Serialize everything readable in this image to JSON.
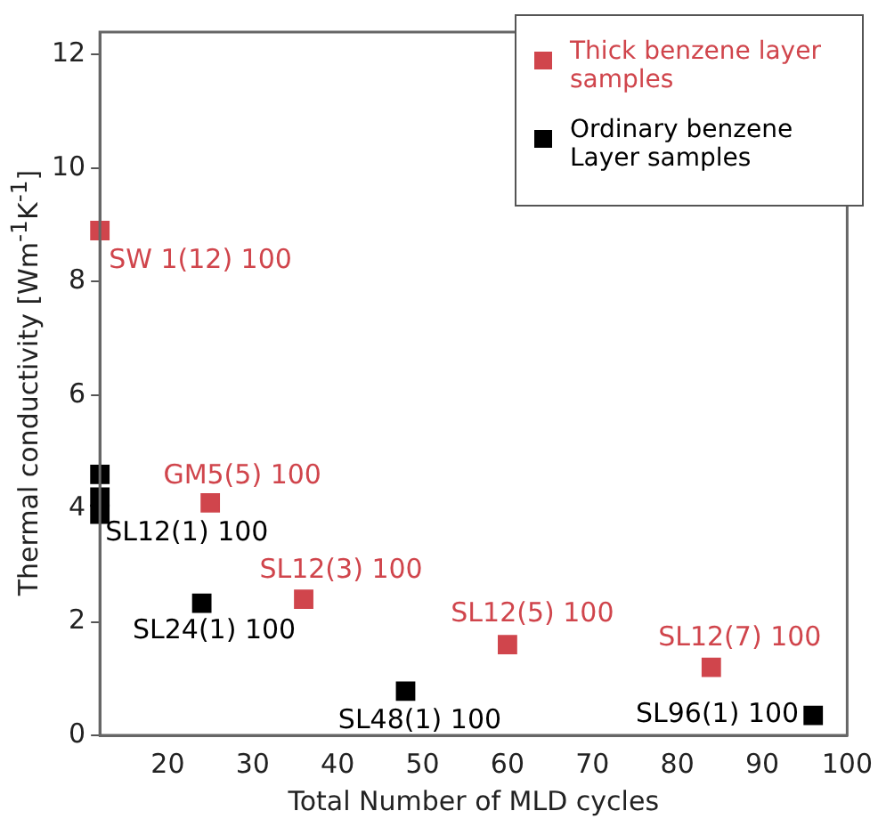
{
  "chart_data": {
    "type": "scatter",
    "xlabel": "Total Number of MLD cycles",
    "ylabel": "Thermal conductivity [Wm$^{-1}$K$^{-1}$]",
    "xlim": [
      12,
      100
    ],
    "xticks": [
      20,
      30,
      40,
      50,
      60,
      70,
      80,
      90,
      100
    ],
    "ylim": [
      0,
      12.4
    ],
    "yticks": [
      0,
      2,
      4,
      6,
      8,
      10,
      12
    ],
    "grid": false,
    "legend": "top right",
    "marker": "square",
    "series": [
      {
        "name": "Thick benzene layer samples",
        "color": "#d0454c",
        "x": [
          12,
          25,
          36,
          60,
          84
        ],
        "values": [
          8.9,
          4.1,
          2.4,
          1.6,
          1.2
        ]
      },
      {
        "name": "Ordinary benzene Layer samples",
        "color": "#000000",
        "x": [
          12,
          12,
          12,
          24,
          48,
          96
        ],
        "values": [
          4.6,
          4.2,
          3.9,
          2.33,
          0.78,
          0.35
        ]
      }
    ],
    "annotations": [
      {
        "text": "SW 1(12) 100",
        "x": 12,
        "y": 8.9
      },
      {
        "text": "GM5(5) 100",
        "x": 25,
        "y": 4.1
      },
      {
        "text": "SL12(1) 100",
        "x": 12,
        "y": 3.9
      },
      {
        "text": "SL12(3) 100",
        "x": 36,
        "y": 2.4
      },
      {
        "text": "SL24(1) 100",
        "x": 24,
        "y": 2.33
      },
      {
        "text": "SL12(5) 100",
        "x": 60,
        "y": 1.6
      },
      {
        "text": "SL48(1) 100",
        "x": 48,
        "y": 0.78
      },
      {
        "text": "SL12(7) 100",
        "x": 84,
        "y": 1.2
      },
      {
        "text": "SL96(1) 100",
        "x": 96,
        "y": 0.35
      }
    ]
  }
}
